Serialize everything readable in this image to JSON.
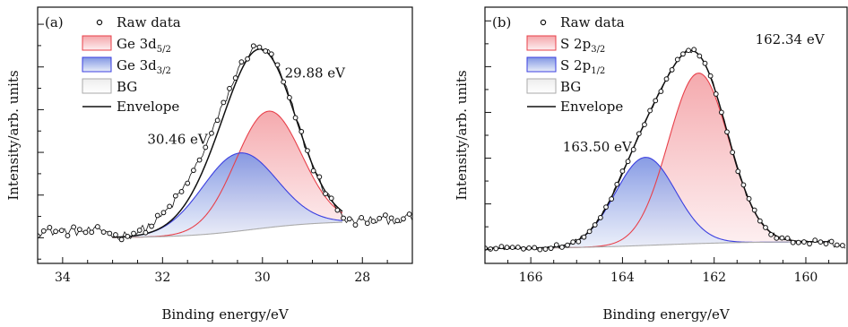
{
  "chart_data": [
    {
      "type": "area",
      "panel_label": "(a)",
      "xlabel": "Binding energy/eV",
      "ylabel": "Intensity/arb. units",
      "xlim": [
        34.5,
        27.0
      ],
      "x_reversed": true,
      "ylim": [
        -0.12,
        1.08
      ],
      "y_tick_labels_shown": false,
      "xticks": [
        34,
        32,
        30,
        28
      ],
      "grid": false,
      "legend_position": "top-left",
      "legend": {
        "raw": "Raw data",
        "comp1_base": "Ge 3d",
        "comp1_sub": "5/2",
        "comp2_base": "Ge 3d",
        "comp2_sub": "3/2",
        "bg": "BG",
        "envelope": "Envelope"
      },
      "components": [
        {
          "key": "comp1",
          "center": 29.88,
          "amplitude": 0.545,
          "fwhm": 1.55,
          "color": "#e8404a",
          "fill_top": "#f7b1b4"
        },
        {
          "key": "comp2",
          "center": 30.46,
          "amplitude": 0.365,
          "fwhm": 1.75,
          "color": "#3b3fe0",
          "fill_top": "#8fa4ea"
        }
      ],
      "background": {
        "low": 0.0,
        "high": 0.078,
        "center": 30.2,
        "width": 0.7,
        "x_start": 33.0,
        "x_end": 28.4,
        "color": "#aaaaaa"
      },
      "annotations": [
        {
          "text": "29.88 eV",
          "x": 28.95,
          "y": 0.75
        },
        {
          "text": "30.46 eV",
          "x": 31.7,
          "y": 0.44
        }
      ],
      "raw_data": {
        "x_start": 34.5,
        "x_end": 27.0,
        "step": 0.06,
        "tail_start": 28.4,
        "tail_end": 27.0,
        "tail_y_start": 0.075,
        "tail_y_end": 0.09,
        "left_base": 0.03,
        "left_until": 33.0,
        "noise": 0.022,
        "shoulder_amp": 0.09,
        "shoulder_x": 31.4,
        "shoulder_w": 0.6
      },
      "colors": {
        "raw": "#111111",
        "envelope": "#111111"
      }
    },
    {
      "type": "area",
      "panel_label": "(b)",
      "xlabel": "Binding energy/eV",
      "ylabel": "Intensity/arb. units",
      "xlim": [
        167.0,
        159.1
      ],
      "x_reversed": true,
      "ylim": [
        -0.06,
        1.06
      ],
      "y_tick_labels_shown": false,
      "xticks": [
        166,
        164,
        162,
        160
      ],
      "grid": false,
      "legend_position": "top-left",
      "legend": {
        "raw": "Raw data",
        "comp1_base": "S 2p",
        "comp1_sub": "3/2",
        "comp2_base": "S 2p",
        "comp2_sub": "1/2",
        "bg": "BG",
        "envelope": "Envelope"
      },
      "components": [
        {
          "key": "comp1",
          "center": 162.34,
          "amplitude": 0.745,
          "fwhm": 1.55,
          "color": "#e8404a",
          "fill_top": "#f7b1b4"
        },
        {
          "key": "comp2",
          "center": 163.5,
          "amplitude": 0.385,
          "fwhm": 1.55,
          "color": "#3b3fe0",
          "fill_top": "#8fa4ea"
        }
      ],
      "background": {
        "low": 0.005,
        "high": 0.035,
        "center": 163.3,
        "width": 1.0,
        "x_start": 167.0,
        "x_end": 159.4,
        "color": "#aaaaaa"
      },
      "annotations": [
        {
          "text": "162.34 eV",
          "x": 160.35,
          "y": 0.9
        },
        {
          "text": "163.50 eV",
          "x": 164.55,
          "y": 0.43
        }
      ],
      "raw_data": {
        "x_start": 167.0,
        "x_end": 159.1,
        "step": 0.06,
        "tail_start": 159.4,
        "tail_end": 159.1,
        "tail_y_start": 0.012,
        "tail_y_end": 0.008,
        "left_base": 0.015,
        "left_until": 167.0,
        "noise": 0.01,
        "shoulder_amp": 0.0,
        "shoulder_x": 164.0,
        "shoulder_w": 0.6
      },
      "colors": {
        "raw": "#111111",
        "envelope": "#111111"
      }
    }
  ]
}
